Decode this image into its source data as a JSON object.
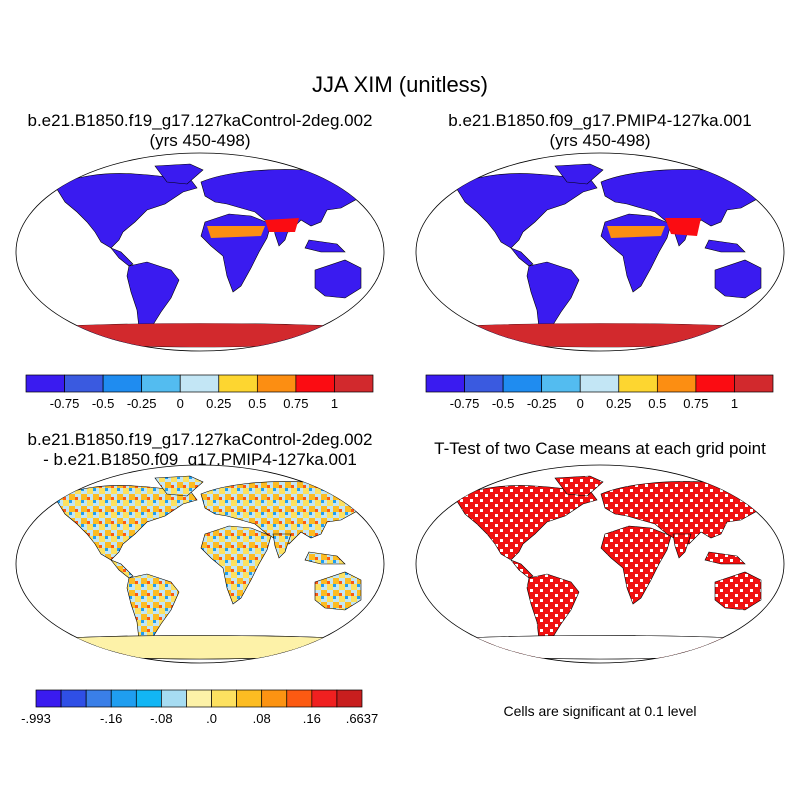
{
  "title": "JJA XIM (unitless)",
  "panels": [
    {
      "title_lines": [
        "b.e21.B1850.f19_g17.127kaControl-2deg.002",
        "(yrs 450-498)"
      ],
      "colorbar": {
        "colors": [
          "#3a1bf0",
          "#3a5ae0",
          "#1f8cf0",
          "#53bcf0",
          "#c3e6f5",
          "#fdd630",
          "#fc8e12",
          "#fb0c12",
          "#d2292d"
        ],
        "labels": [
          "-0.75",
          "-0.5",
          "-0.25",
          "0",
          "0.25",
          "0.5",
          "0.75",
          "1"
        ]
      }
    },
    {
      "title_lines": [
        "b.e21.B1850.f09_g17.PMIP4-127ka.001",
        "(yrs 450-498)"
      ],
      "colorbar": {
        "colors": [
          "#3a1bf0",
          "#3a5ae0",
          "#1f8cf0",
          "#53bcf0",
          "#c3e6f5",
          "#fdd630",
          "#fc8e12",
          "#fb0c12",
          "#d2292d"
        ],
        "labels": [
          "-0.75",
          "-0.5",
          "-0.25",
          "0",
          "0.25",
          "0.5",
          "0.75",
          "1"
        ]
      }
    },
    {
      "title_lines": [
        "b.e21.B1850.f19_g17.127kaControl-2deg.002",
        "- b.e21.B1850.f09_g17.PMIP4-127ka.001"
      ],
      "colorbar": {
        "colors": [
          "#3a1bf0",
          "#2f4fe6",
          "#3a7fe8",
          "#1f9ef0",
          "#12b6f4",
          "#a6dcf2",
          "#fdf2a8",
          "#fde160",
          "#fcbc22",
          "#fc9312",
          "#fc5a12",
          "#f02020",
          "#c81e1e"
        ],
        "labels": [
          "-.993",
          "-.16",
          "-.08",
          ".0",
          ".08",
          ".16",
          ".6637"
        ]
      }
    },
    {
      "title_lines": [
        "T-Test of two Case means at each grid point"
      ],
      "note": "Cells are significant at 0.1 level"
    }
  ],
  "map_colors": {
    "control_land": "#3a1bf0",
    "pmip_land": "#3a1bf0",
    "antarctica_abs": "#d2292d",
    "antarctica_diff": "#fdf2a8",
    "diff_land": "#c3e6f5",
    "ttest_sig": "#f01010"
  }
}
